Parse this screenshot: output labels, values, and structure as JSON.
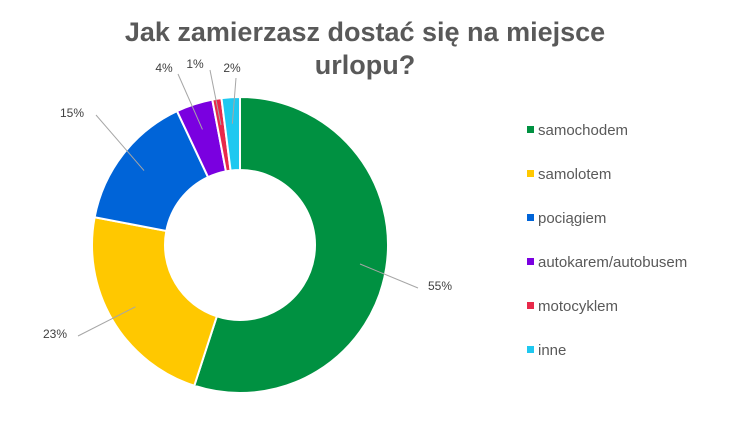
{
  "chart_data": {
    "type": "pie",
    "title": "Jak zamierzasz dostać się na miejsce urlopu?",
    "legend_position": "right",
    "donut": true,
    "slices": [
      {
        "name": "samochodem",
        "value": 55,
        "label": "55%",
        "color": "#009141"
      },
      {
        "name": "samolotem",
        "value": 23,
        "label": "23%",
        "color": "#FFC800"
      },
      {
        "name": "pociągiem",
        "value": 15,
        "label": "15%",
        "color": "#0064D8"
      },
      {
        "name": "autokarem/autobusem",
        "value": 4,
        "label": "4%",
        "color": "#7A00E0"
      },
      {
        "name": "motocyklem",
        "value": 1,
        "label": "1%",
        "color": "#E8294A"
      },
      {
        "name": "inne",
        "value": 2,
        "label": "2%",
        "color": "#1FC8F0"
      }
    ]
  }
}
